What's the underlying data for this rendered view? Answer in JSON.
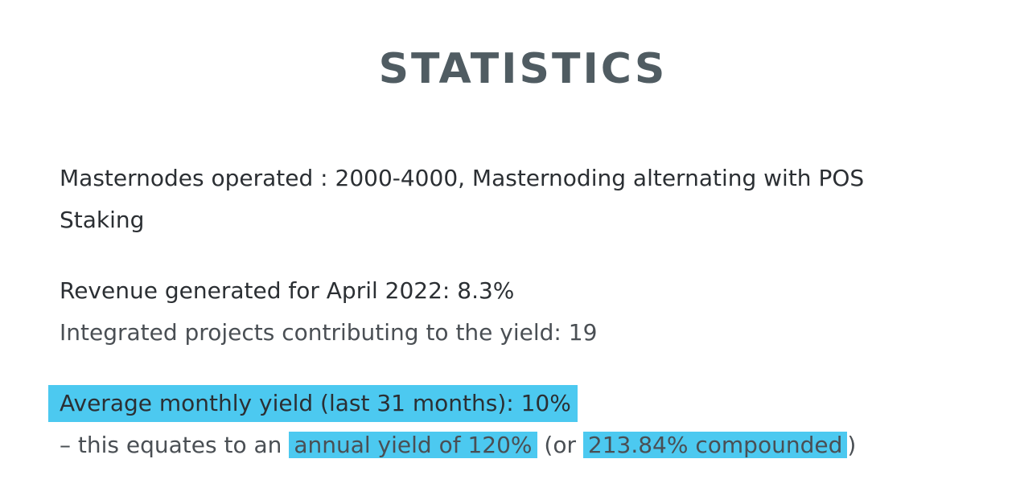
{
  "title": "STATISTICS",
  "masternodes": {
    "line1": "Masternodes operated : 2000-4000, Masternoding alternating with POS",
    "line2": "Staking"
  },
  "revenue": "Revenue generated for April 2022: 8.3%",
  "integrated": "Integrated projects contributing to the yield: 19",
  "average": "Average monthly yield (last 31 months): 10%",
  "equates": {
    "prefix": "– this equates to an ",
    "annual": "annual yield of 120%",
    "middle": " (or ",
    "compounded": "213.84% compounded",
    "suffix": ")"
  },
  "colors": {
    "highlight": "#4cc9f0",
    "title": "#505c62"
  }
}
